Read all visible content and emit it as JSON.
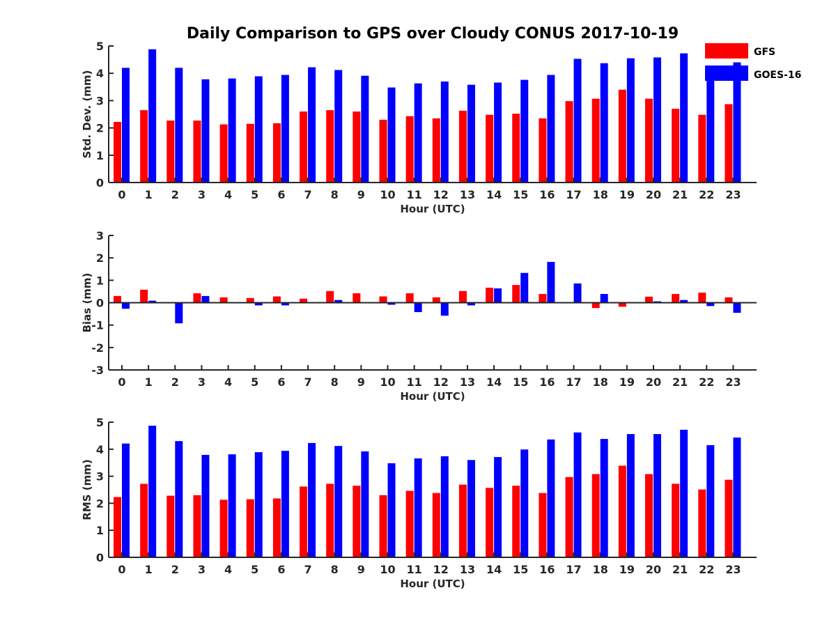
{
  "figure": {
    "title": "Daily Comparison to GPS over Cloudy CONUS 2017-10-19"
  },
  "legend": {
    "placement": "top-right",
    "entries": [
      {
        "label": "GFS",
        "color": "#ff0000"
      },
      {
        "label": "GOES-16",
        "color": "#0000ff"
      }
    ]
  },
  "chart_data": [
    {
      "type": "bar",
      "xlabel": "Hour (UTC)",
      "ylabel": "Std. Dev. (mm)",
      "ylim": [
        0,
        5
      ],
      "yticks": [
        0,
        1,
        2,
        3,
        4,
        5
      ],
      "categories": [
        "0",
        "1",
        "2",
        "3",
        "4",
        "5",
        "6",
        "7",
        "8",
        "9",
        "10",
        "11",
        "12",
        "13",
        "14",
        "15",
        "16",
        "17",
        "18",
        "19",
        "20",
        "21",
        "22",
        "23"
      ],
      "series": [
        {
          "name": "GFS",
          "color": "#ff0000",
          "values": [
            2.22,
            2.65,
            2.27,
            2.27,
            2.13,
            2.15,
            2.17,
            2.6,
            2.65,
            2.6,
            2.3,
            2.43,
            2.35,
            2.63,
            2.48,
            2.52,
            2.35,
            2.98,
            3.07,
            3.4,
            3.07,
            2.7,
            2.48,
            2.87
          ]
        },
        {
          "name": "GOES-16",
          "color": "#0000ff",
          "values": [
            4.2,
            4.88,
            4.2,
            3.78,
            3.81,
            3.89,
            3.94,
            4.22,
            4.12,
            3.91,
            3.48,
            3.63,
            3.7,
            3.58,
            3.66,
            3.76,
            3.94,
            4.53,
            4.37,
            4.55,
            4.58,
            4.73,
            4.15,
            4.4
          ]
        }
      ]
    },
    {
      "type": "bar",
      "xlabel": "Hour (UTC)",
      "ylabel": "Bias (mm)",
      "ylim": [
        -3,
        3
      ],
      "yticks": [
        -3,
        -2,
        -1,
        0,
        1,
        2,
        3
      ],
      "categories": [
        "0",
        "1",
        "2",
        "3",
        "4",
        "5",
        "6",
        "7",
        "8",
        "9",
        "10",
        "11",
        "12",
        "13",
        "14",
        "15",
        "16",
        "17",
        "18",
        "19",
        "20",
        "21",
        "22",
        "23"
      ],
      "series": [
        {
          "name": "GFS",
          "color": "#ff0000",
          "values": [
            0.3,
            0.58,
            0.0,
            0.42,
            0.24,
            0.21,
            0.28,
            0.18,
            0.52,
            0.42,
            0.28,
            0.42,
            0.24,
            0.52,
            0.67,
            0.79,
            0.39,
            0.0,
            -0.24,
            -0.18,
            0.27,
            0.39,
            0.45,
            0.24
          ]
        },
        {
          "name": "GOES-16",
          "color": "#0000ff",
          "values": [
            -0.27,
            0.09,
            -0.92,
            0.3,
            0.03,
            -0.12,
            -0.12,
            0.0,
            0.12,
            0.0,
            -0.09,
            -0.42,
            -0.58,
            -0.12,
            0.64,
            1.33,
            1.82,
            0.86,
            0.39,
            0.0,
            0.06,
            0.12,
            -0.15,
            -0.45
          ]
        }
      ]
    },
    {
      "type": "bar",
      "xlabel": "Hour (UTC)",
      "ylabel": "RMS (mm)",
      "ylim": [
        0,
        5
      ],
      "yticks": [
        0,
        1,
        2,
        3,
        4,
        5
      ],
      "categories": [
        "0",
        "1",
        "2",
        "3",
        "4",
        "5",
        "6",
        "7",
        "8",
        "9",
        "10",
        "11",
        "12",
        "13",
        "14",
        "15",
        "16",
        "17",
        "18",
        "19",
        "20",
        "21",
        "22",
        "23"
      ],
      "series": [
        {
          "name": "GFS",
          "color": "#ff0000",
          "values": [
            2.23,
            2.72,
            2.28,
            2.3,
            2.13,
            2.15,
            2.18,
            2.62,
            2.72,
            2.65,
            2.3,
            2.46,
            2.38,
            2.69,
            2.57,
            2.65,
            2.38,
            2.97,
            3.08,
            3.39,
            3.08,
            2.72,
            2.51,
            2.87
          ]
        },
        {
          "name": "GOES-16",
          "color": "#0000ff",
          "values": [
            4.21,
            4.87,
            4.3,
            3.79,
            3.81,
            3.89,
            3.94,
            4.23,
            4.12,
            3.92,
            3.48,
            3.66,
            3.74,
            3.6,
            3.71,
            3.99,
            4.36,
            4.62,
            4.38,
            4.56,
            4.56,
            4.72,
            4.15,
            4.43
          ]
        }
      ]
    }
  ]
}
